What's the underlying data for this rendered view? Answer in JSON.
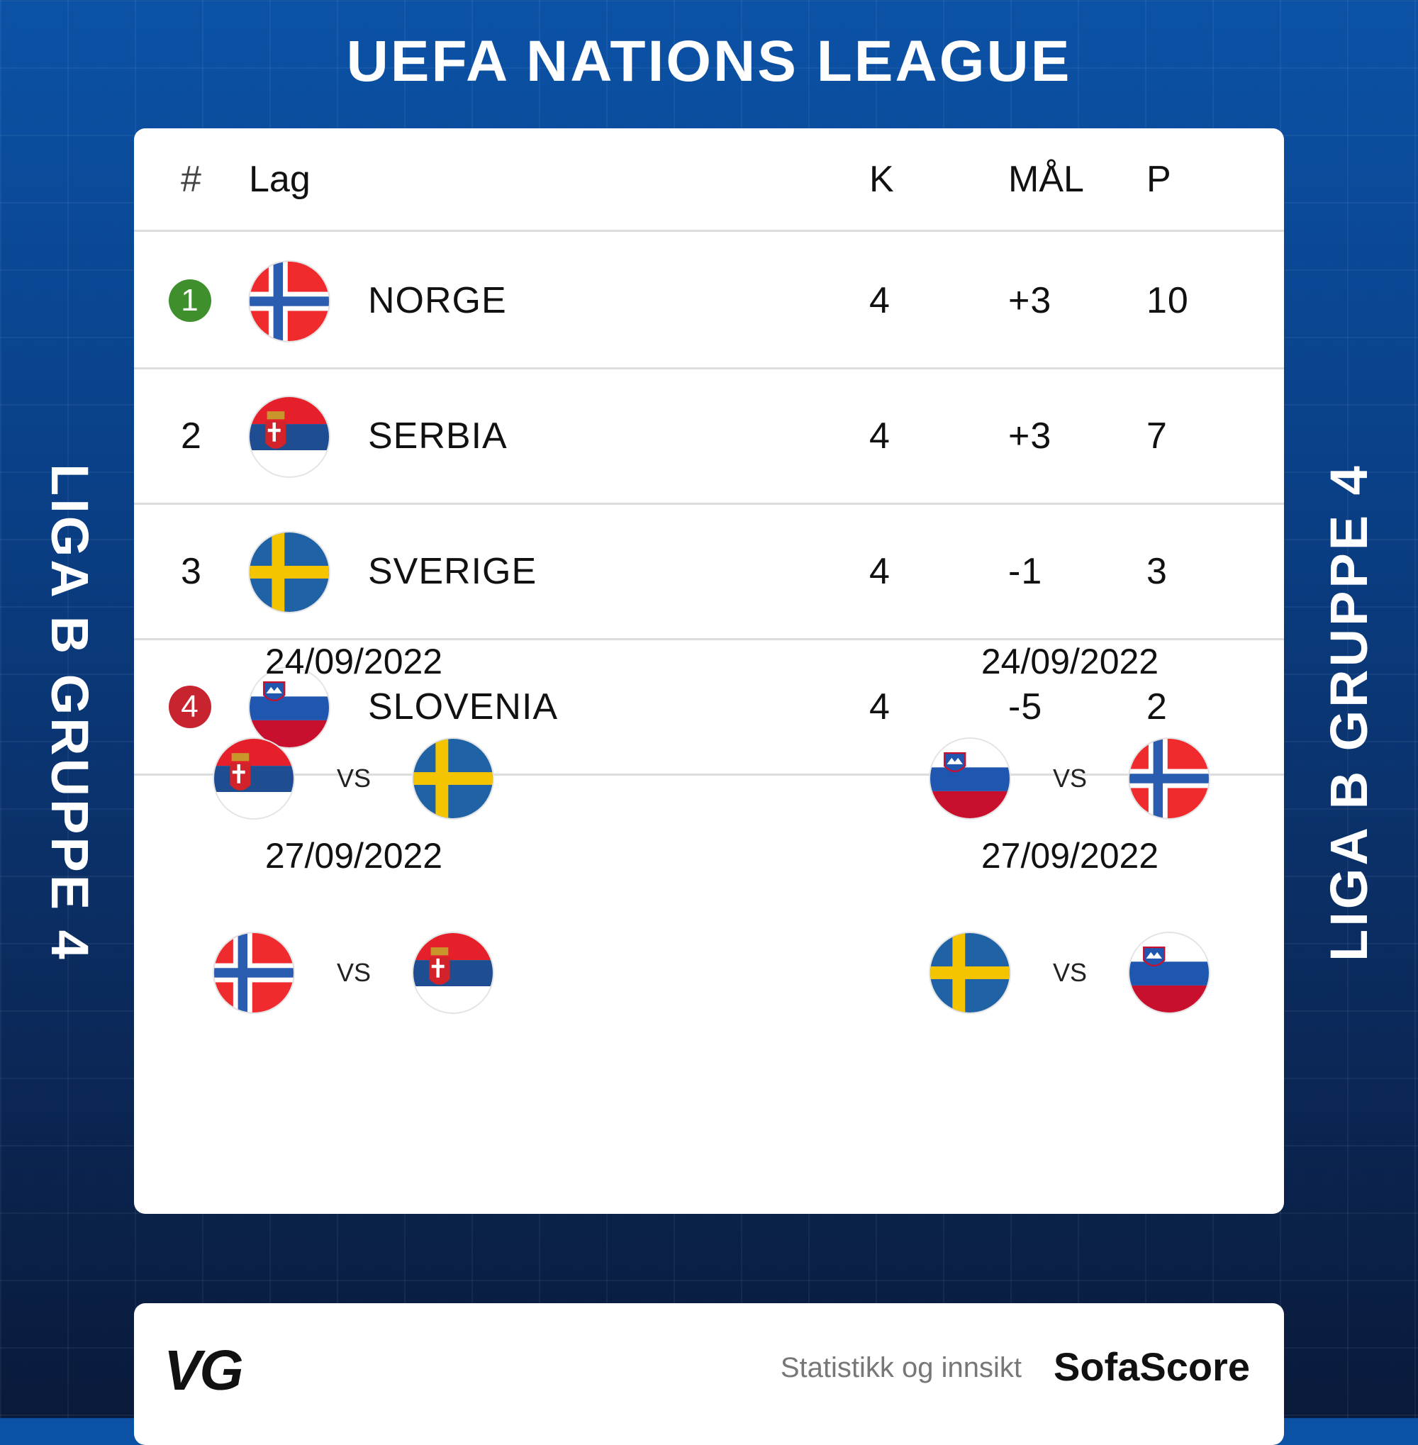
{
  "title": "UEFA NATIONS LEAGUE",
  "side_label": "LIGA B GRUPPE 4",
  "table": {
    "headers": {
      "rank": "#",
      "team": "Lag",
      "played": "K",
      "goals": "MÅL",
      "points": "P"
    },
    "rows": [
      {
        "rank": "1",
        "team": "NORGE",
        "flag": "norway",
        "played": "4",
        "goals": "+3",
        "points": "10",
        "badge_color": "#3f8f2d"
      },
      {
        "rank": "2",
        "team": "SERBIA",
        "flag": "serbia",
        "played": "4",
        "goals": "+3",
        "points": "7",
        "badge_color": ""
      },
      {
        "rank": "3",
        "team": "SVERIGE",
        "flag": "sweden",
        "played": "4",
        "goals": "-1",
        "points": "3",
        "badge_color": ""
      },
      {
        "rank": "4",
        "team": "SLOVENIA",
        "flag": "slovenia",
        "played": "4",
        "goals": "-5",
        "points": "2",
        "badge_color": "#c8242f"
      }
    ]
  },
  "fixtures": [
    {
      "date": "24/09/2022",
      "home": "serbia",
      "away": "sweden",
      "vs": "VS"
    },
    {
      "date": "24/09/2022",
      "home": "slovenia",
      "away": "norway",
      "vs": "VS"
    },
    {
      "date": "27/09/2022",
      "home": "norway",
      "away": "serbia",
      "vs": "VS"
    },
    {
      "date": "27/09/2022",
      "home": "sweden",
      "away": "slovenia",
      "vs": "VS"
    }
  ],
  "footer": {
    "vg_logo": "VG",
    "tagline": "Statistikk og innsikt",
    "brand": "SofaScore"
  }
}
